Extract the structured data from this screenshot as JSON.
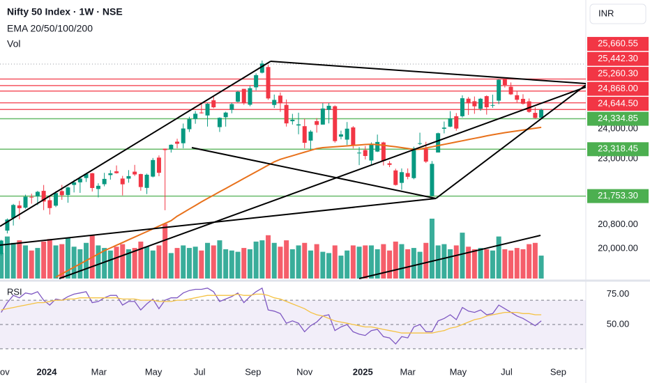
{
  "chart_data": [
    {
      "type": "candlestick",
      "title": "Nifty 50 Index · 1W · NSE",
      "subtitle": "EMA 20/50/100/200",
      "volume_label": "Vol",
      "currency": "INR",
      "up_color": "#089981",
      "down_color": "#f23645",
      "xlim": [
        -0.2,
        96.35
      ],
      "xticks": [
        {
          "value": 0.4,
          "label": "ov"
        },
        {
          "value": 7.5,
          "label": "2024"
        },
        {
          "value": 16.1,
          "label": "Mar"
        },
        {
          "value": 25.1,
          "label": "May"
        },
        {
          "value": 32.7,
          "label": "Jul"
        },
        {
          "value": 41.5,
          "label": "Sep"
        },
        {
          "value": 50.0,
          "label": "Nov"
        },
        {
          "value": 59.6,
          "label": "2025"
        },
        {
          "value": 67.0,
          "label": "Mar"
        },
        {
          "value": 75.3,
          "label": "May"
        },
        {
          "value": 83.3,
          "label": "Jul"
        },
        {
          "value": 91.8,
          "label": "Sep"
        }
      ],
      "ylim": [
        19000,
        28300
      ],
      "yticks": [
        {
          "value": 24000,
          "label": "24,000.00"
        },
        {
          "value": 23000,
          "label": "23,000.00"
        },
        {
          "value": 20800,
          "label": "20,800.00"
        },
        {
          "value": 20000,
          "label": "20,000.00"
        }
      ],
      "levels": [
        {
          "value": 25660.55,
          "label": "25,660.55",
          "color": "#f23645"
        },
        {
          "value": 25442.3,
          "label": "25,442.30",
          "color": "#f23645"
        },
        {
          "value": 25260.3,
          "label": "25,260.30",
          "color": "#f23645"
        },
        {
          "value": 24868.0,
          "label": "24,868.00",
          "color": "#f23645"
        },
        {
          "value": 24644.5,
          "label": "24,644.50",
          "color": "#f23645"
        },
        {
          "value": 24334.85,
          "label": "24,334.85",
          "color": "#4caf50"
        },
        {
          "value": 23318.45,
          "label": "23,318.45",
          "color": "#4caf50"
        },
        {
          "value": 21753.3,
          "label": "21,753.30",
          "color": "#4caf50"
        }
      ],
      "open": [
        19820,
        20601,
        21019,
        21440,
        21365,
        21727,
        21747,
        21928,
        21615,
        21433,
        21921,
        21790,
        22126,
        22212,
        22356,
        22517,
        21990,
        22150,
        22455,
        22579,
        22339,
        22336,
        22568,
        22489,
        22027,
        22404,
        23038,
        23337,
        23319,
        23570,
        23518,
        23986,
        24329,
        24543,
        24445,
        24951,
        24056,
        24387,
        24636,
        24906,
        25333,
        24803,
        25384,
        25872,
        26061,
        24796,
        25108,
        24798,
        24253,
        24111,
        24087,
        23605,
        24254,
        24140,
        24633,
        24753,
        23738,
        23638,
        24046,
        23195,
        23290,
        22940,
        23239,
        23544,
        22847,
        22609,
        22194,
        22521,
        22353,
        23515,
        23341,
        21758,
        23208,
        24000,
        24071,
        24420,
        24420,
        25005,
        24919,
        24669,
        25090,
        24787,
        24939,
        25661,
        25405,
        25121,
        24999,
        24916,
        24532,
        24371
      ],
      "high": [
        20291,
        21006,
        21493,
        21593,
        21801,
        21834,
        21928,
        22124,
        21750,
        21918,
        22127,
        22068,
        22297,
        22412,
        22526,
        22527,
        22181,
        22529,
        22619,
        22776,
        22428,
        22620,
        22795,
        22499,
        22503,
        23027,
        23111,
        23339,
        23481,
        23668,
        24175,
        24401,
        24592,
        24854,
        24861,
        25078,
        24382,
        24572,
        24868,
        25269,
        25333,
        25433,
        25849,
        26277,
        26134,
        25143,
        25212,
        24978,
        24498,
        24537,
        24336,
        23957,
        24354,
        24857,
        24857,
        24781,
        23938,
        24226,
        24089,
        23391,
        23426,
        23546,
        23807,
        23568,
        22923,
        22668,
        22677,
        22677,
        23403,
        23870,
        23565,
        22923,
        23872,
        24242,
        24590,
        24526,
        25117,
        25062,
        25079,
        25030,
        25116,
        25140,
        25654,
        25669,
        25548,
        25255,
        25154,
        25012,
        24719,
        24673
      ],
      "low": [
        19768,
        20507,
        20770,
        20977,
        21330,
        21500,
        21450,
        21285,
        21137,
        21386,
        21629,
        21530,
        21875,
        21860,
        22224,
        21905,
        21710,
        22079,
        22303,
        22503,
        21777,
        22200,
        22425,
        21932,
        21821,
        22378,
        22417,
        21281,
        23206,
        23350,
        23350,
        23893,
        24168,
        24508,
        24074,
        24686,
        23894,
        24073,
        24517,
        24874,
        24801,
        24753,
        25285,
        25848,
        24967,
        24694,
        24567,
        24074,
        24141,
        23817,
        23350,
        23263,
        23873,
        24140,
        24180,
        23537,
        23647,
        23460,
        23344,
        22787,
        22976,
        22786,
        23223,
        22775,
        22720,
        22105,
        21965,
        22315,
        22314,
        23451,
        22858,
        21743,
        23207,
        23847,
        24054,
        23936,
        24378,
        24462,
        24500,
        24600,
        24473,
        24700,
        24824,
        25377,
        25130,
        24882,
        24806,
        24536,
        24337,
        24344
      ],
      "close": [
        20268,
        20970,
        21457,
        21349,
        21731,
        21711,
        21895,
        21572,
        21353,
        21854,
        21783,
        22041,
        22213,
        22339,
        22494,
        22023,
        22097,
        22327,
        22514,
        22519,
        22147,
        22420,
        22476,
        22055,
        22466,
        22957,
        22531,
        23290,
        23466,
        23501,
        24010,
        24323,
        24502,
        24530,
        24834,
        24718,
        24367,
        24541,
        24823,
        25235,
        24852,
        25356,
        25791,
        26178,
        25014,
        24964,
        24854,
        24181,
        24304,
        24148,
        23532,
        23907,
        24131,
        24677,
        24768,
        23588,
        23813,
        24004,
        23431,
        23203,
        23092,
        23482,
        23560,
        22929,
        22795,
        22125,
        22552,
        22397,
        23350,
        23519,
        22904,
        22829,
        23852,
        24039,
        24347,
        24008,
        25020,
        24853,
        24751,
        25003,
        24719,
        24793,
        25637,
        25461,
        25150,
        24968,
        24837,
        24565,
        24363,
        24631
      ],
      "volume": [
        2.0,
        3.3,
        2.8,
        3.0,
        2.6,
        2.2,
        2.4,
        2.9,
        3.1,
        2.6,
        2.7,
        3.2,
        2.5,
        2.3,
        2.8,
        3.4,
        2.6,
        2.4,
        2.2,
        2.5,
        2.7,
        2.3,
        2.4,
        2.9,
        2.5,
        2.2,
        2.6,
        4.3,
        2.0,
        2.4,
        2.6,
        2.4,
        2.5,
        2.2,
        2.8,
        2.6,
        3.0,
        2.3,
        2.2,
        2.1,
        2.4,
        2.3,
        2.9,
        3.0,
        3.4,
        2.8,
        2.5,
        3.0,
        2.3,
        2.6,
        2.8,
        2.2,
        2.7,
        2.1,
        2.0,
        2.6,
        1.8,
        2.2,
        2.6,
        2.5,
        2.6,
        2.6,
        2.3,
        2.7,
        2.2,
        2.9,
        2.7,
        2.3,
        2.4,
        2.1,
        2.8,
        4.7,
        2.6,
        2.7,
        2.3,
        2.6,
        3.6,
        2.5,
        2.3,
        2.4,
        2.3,
        2.2,
        3.3,
        2.3,
        2.2,
        2.4,
        2.3,
        2.7,
        2.8,
        1.8
      ],
      "ema": {
        "color": "#e8711b",
        "values": [
          null,
          null,
          null,
          null,
          null,
          null,
          null,
          null,
          null,
          19047,
          19157,
          19268,
          19378,
          19489,
          19599,
          19709,
          19820,
          19930,
          20021,
          20112,
          20203,
          20294,
          20385,
          20476,
          20567,
          20658,
          20750,
          20841,
          20932,
          21080,
          21200,
          21320,
          21440,
          21560,
          21674,
          21785,
          21896,
          22007,
          22118,
          22230,
          22341,
          22452,
          22563,
          22674,
          22786,
          22897,
          22980,
          23040,
          23100,
          23160,
          23220,
          23280,
          23340,
          23370,
          23385,
          23400,
          23415,
          23430,
          23445,
          23460,
          23475,
          23485,
          23470,
          23450,
          23425,
          23400,
          23370,
          23340,
          23310,
          23320,
          23360,
          23400,
          23440,
          23480,
          23520,
          23560,
          23600,
          23640,
          23680,
          23720,
          23765,
          23800,
          23835,
          23870,
          23900,
          23930,
          23960,
          23990,
          24020,
          24047
        ]
      }
    },
    {
      "type": "line",
      "title": "RSI",
      "ylim": [
        19,
        85
      ],
      "yticks": [
        {
          "value": 75,
          "label": "75.00"
        },
        {
          "value": 50,
          "label": "50.00"
        }
      ],
      "levels": [
        70,
        50,
        30
      ],
      "band_color": "#7e57c2",
      "series": [
        {
          "color": "#7e57c2",
          "values": [
            60,
            68,
            74,
            72,
            76,
            75,
            77,
            70,
            66,
            71,
            70,
            73,
            75,
            76,
            77,
            68,
            69,
            72,
            74,
            74,
            66,
            69,
            69,
            62,
            67,
            71,
            63,
            70,
            72,
            72,
            76,
            78,
            79,
            79,
            80,
            77,
            69,
            71,
            73,
            76,
            68,
            73,
            77,
            80,
            62,
            61,
            59,
            51,
            53,
            51,
            44,
            49,
            52,
            57,
            58,
            45,
            48,
            50,
            44,
            42,
            41,
            45,
            46,
            40,
            39,
            34,
            40,
            39,
            48,
            50,
            44,
            44,
            53,
            55,
            58,
            54,
            64,
            61,
            60,
            62,
            58,
            59,
            66,
            63,
            60,
            57,
            55,
            52,
            49,
            53
          ]
        },
        {
          "color": "#f5c242",
          "values": [
            62,
            63,
            64,
            65,
            66,
            67,
            68,
            68,
            69,
            70,
            70,
            71,
            71,
            72,
            72,
            72,
            72,
            72,
            72,
            72,
            71,
            71,
            71,
            70,
            70,
            70,
            69,
            69,
            69,
            70,
            70,
            71,
            72,
            73,
            74,
            74,
            74,
            74,
            74,
            75,
            74,
            74,
            75,
            75,
            74,
            72,
            71,
            69,
            67,
            65,
            63,
            60,
            58,
            57,
            55,
            53,
            52,
            51,
            50,
            49,
            48,
            48,
            47,
            46,
            45,
            44,
            43,
            43,
            43,
            43,
            43,
            43,
            44,
            45,
            47,
            48,
            50,
            52,
            54,
            55,
            57,
            58,
            59,
            60,
            60,
            60,
            59,
            59,
            58,
            58
          ]
        }
      ]
    }
  ]
}
